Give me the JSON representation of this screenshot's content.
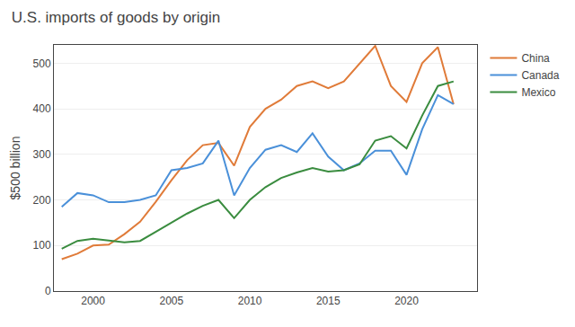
{
  "chart_data": {
    "type": "line",
    "title": "U.S. imports of goods by origin",
    "ylabel": "$500 billion",
    "x": [
      1998,
      1999,
      2000,
      2001,
      2002,
      2003,
      2004,
      2005,
      2006,
      2007,
      2008,
      2009,
      2010,
      2011,
      2012,
      2013,
      2014,
      2015,
      2016,
      2017,
      2018,
      2019,
      2020,
      2021,
      2022,
      2023
    ],
    "series": [
      {
        "name": "China",
        "color": "#e07b39",
        "values": [
          70,
          82,
          100,
          102,
          125,
          152,
          196,
          243,
          287,
          320,
          325,
          275,
          360,
          400,
          420,
          450,
          460,
          445,
          460,
          500,
          538,
          450,
          415,
          500,
          535,
          410
        ]
      },
      {
        "name": "Canada",
        "color": "#4a90d9",
        "values": [
          185,
          215,
          210,
          195,
          195,
          200,
          210,
          265,
          270,
          280,
          330,
          210,
          270,
          310,
          320,
          305,
          346,
          295,
          265,
          280,
          308,
          308,
          255,
          355,
          430,
          410
        ]
      },
      {
        "name": "Mexico",
        "color": "#3a8c3f",
        "values": [
          93,
          110,
          115,
          111,
          107,
          110,
          130,
          150,
          170,
          187,
          200,
          160,
          200,
          228,
          248,
          260,
          270,
          262,
          265,
          278,
          330,
          340,
          313,
          385,
          450,
          460
        ]
      }
    ],
    "xlim": [
      1997.5,
      2024.5
    ],
    "xticks": [
      2000,
      2005,
      2010,
      2015,
      2020
    ],
    "ylim": [
      0,
      540
    ],
    "yticks": [
      0,
      100,
      200,
      300,
      400,
      500
    ],
    "grid": true,
    "legend": "right"
  }
}
